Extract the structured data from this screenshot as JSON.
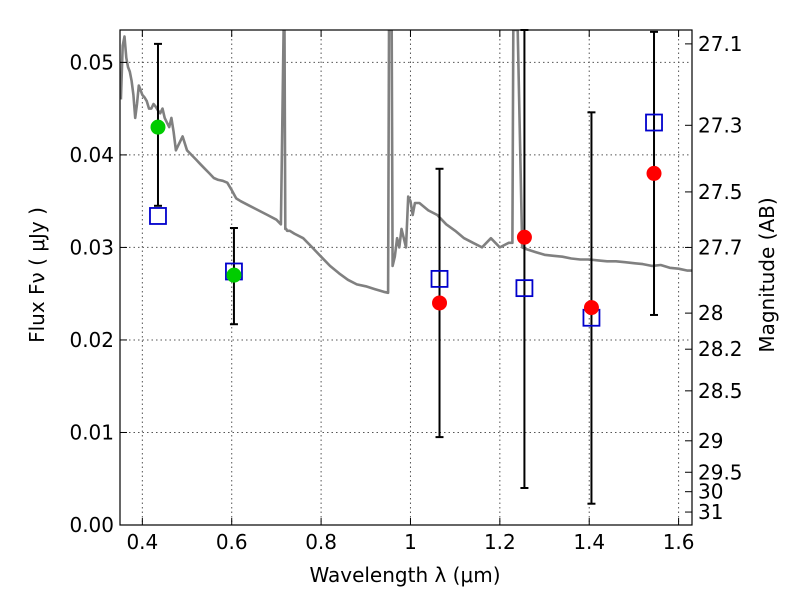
{
  "chart_data": {
    "type": "scatter",
    "xlabel": "Wavelength  λ (μm)",
    "ylabel": "Flux  Fν ( μJy )",
    "y2label": "Magnitude (AB)",
    "xlim": [
      0.35,
      1.63
    ],
    "ylim": [
      0.0,
      0.0535
    ],
    "grid": true,
    "x_ticks": [
      0.4,
      0.6,
      0.8,
      1.0,
      1.2,
      1.4,
      1.6
    ],
    "x_tick_labels": [
      "0.4",
      "0.6",
      "0.8",
      "1",
      "1.2",
      "1.4",
      "1.6"
    ],
    "y_ticks": [
      0.0,
      0.01,
      0.02,
      0.03,
      0.04,
      0.05
    ],
    "y_tick_labels": [
      "0.00",
      "0.01",
      "0.02",
      "0.03",
      "0.04",
      "0.05"
    ],
    "y2_ticks": [
      {
        "flux": 0.052,
        "label": "27.1"
      },
      {
        "flux": 0.0432,
        "label": "27.3"
      },
      {
        "flux": 0.036,
        "label": "27.5"
      },
      {
        "flux": 0.03,
        "label": "27.7"
      },
      {
        "flux": 0.0229,
        "label": "28"
      },
      {
        "flux": 0.019,
        "label": "28.2"
      },
      {
        "flux": 0.0145,
        "label": "28.5"
      },
      {
        "flux": 0.0091,
        "label": "29"
      },
      {
        "flux": 0.0057,
        "label": "29.5"
      },
      {
        "flux": 0.0036,
        "label": "30"
      },
      {
        "flux": 0.0014,
        "label": "31"
      }
    ],
    "colors": {
      "spectrum": "#808080",
      "green_points": "#00cc00",
      "red_points": "#ff0000",
      "model_squares": "#0000cc",
      "errorbars": "#000000"
    },
    "series": [
      {
        "kind": "errorbar",
        "x": [
          0.435,
          0.605,
          1.065,
          1.255,
          1.405,
          1.545
        ],
        "low": [
          0.0345,
          0.0217,
          0.0095,
          0.004,
          0.0023,
          0.0227
        ],
        "high": [
          0.052,
          0.0321,
          0.0385,
          0.0535,
          0.0446,
          0.0533
        ]
      },
      {
        "kind": "points_green",
        "x": [
          0.435,
          0.605
        ],
        "y": [
          0.043,
          0.027
        ]
      },
      {
        "kind": "points_red",
        "x": [
          1.065,
          1.255,
          1.405,
          1.545
        ],
        "y": [
          0.024,
          0.0311,
          0.0235,
          0.038
        ]
      },
      {
        "kind": "model_squares",
        "x": [
          0.435,
          0.605,
          1.065,
          1.255,
          1.405,
          1.545
        ],
        "y": [
          0.0334,
          0.0274,
          0.0266,
          0.0256,
          0.0224,
          0.0435
        ]
      },
      {
        "kind": "spectrum",
        "x": [
          0.352,
          0.356,
          0.36,
          0.364,
          0.368,
          0.372,
          0.376,
          0.38,
          0.384,
          0.388,
          0.392,
          0.396,
          0.4,
          0.405,
          0.41,
          0.415,
          0.42,
          0.425,
          0.43,
          0.435,
          0.44,
          0.445,
          0.45,
          0.455,
          0.46,
          0.465,
          0.47,
          0.475,
          0.48,
          0.49,
          0.5,
          0.51,
          0.52,
          0.53,
          0.54,
          0.55,
          0.56,
          0.57,
          0.58,
          0.59,
          0.6,
          0.61,
          0.62,
          0.64,
          0.66,
          0.68,
          0.7,
          0.71,
          0.716,
          0.718,
          0.72,
          0.722,
          0.724,
          0.73,
          0.74,
          0.76,
          0.78,
          0.8,
          0.82,
          0.84,
          0.86,
          0.88,
          0.9,
          0.92,
          0.94,
          0.95,
          0.952,
          0.955,
          0.958,
          0.96,
          0.965,
          0.97,
          0.975,
          0.98,
          0.985,
          0.99,
          0.995,
          1.0,
          1.005,
          1.01,
          1.02,
          1.04,
          1.06,
          1.08,
          1.1,
          1.12,
          1.14,
          1.16,
          1.18,
          1.2,
          1.22,
          1.228,
          1.23,
          1.24,
          1.25,
          1.26,
          1.28,
          1.3,
          1.32,
          1.34,
          1.36,
          1.38,
          1.4,
          1.42,
          1.44,
          1.46,
          1.48,
          1.5,
          1.52,
          1.54,
          1.56,
          1.58,
          1.6,
          1.62,
          1.63
        ],
        "y": [
          0.046,
          0.0518,
          0.0528,
          0.0505,
          0.0495,
          0.049,
          0.048,
          0.0465,
          0.044,
          0.0455,
          0.0475,
          0.047,
          0.0465,
          0.0462,
          0.0458,
          0.045,
          0.045,
          0.0455,
          0.0452,
          0.0448,
          0.0445,
          0.045,
          0.044,
          0.0435,
          0.043,
          0.044,
          0.0425,
          0.0405,
          0.041,
          0.042,
          0.0405,
          0.04,
          0.0395,
          0.039,
          0.0385,
          0.038,
          0.0375,
          0.0373,
          0.0372,
          0.037,
          0.0362,
          0.0353,
          0.035,
          0.0345,
          0.034,
          0.0335,
          0.033,
          0.0325,
          0.0535,
          0.0535,
          0.032,
          0.032,
          0.0318,
          0.0318,
          0.0315,
          0.031,
          0.03,
          0.029,
          0.028,
          0.0272,
          0.0265,
          0.026,
          0.0258,
          0.0255,
          0.0252,
          0.0251,
          0.0535,
          0.0535,
          0.0535,
          0.028,
          0.029,
          0.031,
          0.03,
          0.032,
          0.031,
          0.03,
          0.0355,
          0.035,
          0.0335,
          0.0348,
          0.0348,
          0.034,
          0.0335,
          0.0325,
          0.0318,
          0.031,
          0.0305,
          0.03,
          0.031,
          0.03,
          0.0305,
          0.0305,
          0.0535,
          0.0535,
          0.03,
          0.0298,
          0.0295,
          0.0292,
          0.0291,
          0.029,
          0.0288,
          0.0287,
          0.0287,
          0.0286,
          0.0285,
          0.0285,
          0.0284,
          0.0283,
          0.0282,
          0.028,
          0.0281,
          0.0278,
          0.0277,
          0.0275,
          0.0275
        ]
      }
    ]
  }
}
